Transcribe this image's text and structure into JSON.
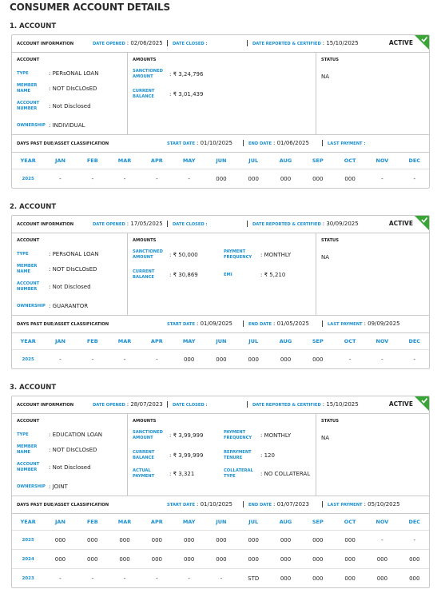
{
  "title": "CONSUMER ACCOUNT DETAILS",
  "accounts": [
    {
      "heading": "1. ACCOUNT",
      "badge": "ACTIVE",
      "info": {
        "title": "ACCOUNT INFORMATION",
        "fields": [
          {
            "label": "DATE OPENED",
            "value": ": 02/06/2025"
          },
          {
            "label": "DATE CLOSED :"
          },
          {
            "label": "DATE REPORTED & CERTIFIED",
            "value": ": 15/10/2025"
          }
        ]
      },
      "account": {
        "header": "ACCOUNT",
        "fields": [
          {
            "label": "TYPE",
            "value": ": PERsONAL LOAN"
          },
          {
            "label": "MEMBER NAME",
            "value": ": NOT DIsCLOsED"
          },
          {
            "label": "ACCOUNT NUMBER",
            "value": ": Not Disclosed"
          },
          {
            "label": "OWNERSHIP",
            "value": ": INDIVIDUAL"
          }
        ]
      },
      "amounts": {
        "header": "AMOUNTS",
        "left": [
          {
            "label": "SANCTIONED AMOUNT",
            "value": ": ₹ 3,24,796"
          },
          {
            "label": "CURRENT BALANCE",
            "value": ": ₹ 3,01,439"
          }
        ]
      },
      "status": {
        "header": "STATUS",
        "value": "NA"
      },
      "dpd": {
        "title": "DAYS PAST DUE/ASSET CLASSIFICATION",
        "fields": [
          {
            "label": "START DATE",
            "value": ": 01/10/2025"
          },
          {
            "label": "END DATE",
            "value": ": 01/06/2025"
          },
          {
            "label": "LAST PAYMENT :"
          }
        ]
      },
      "table": {
        "columns": [
          "YEAR",
          "JAN",
          "FEB",
          "MAR",
          "APR",
          "MAY",
          "JUN",
          "JUL",
          "AUG",
          "SEP",
          "OCT",
          "NOV",
          "DEC"
        ],
        "rows": [
          [
            "2025",
            "-",
            "-",
            "-",
            "-",
            "-",
            "000",
            "000",
            "000",
            "000",
            "000",
            "-",
            "-"
          ]
        ]
      }
    },
    {
      "heading": "2. ACCOUNT",
      "badge": "ACTIVE",
      "info": {
        "title": "ACCOUNT INFORMATION",
        "fields": [
          {
            "label": "DATE OPENED",
            "value": ": 17/05/2025"
          },
          {
            "label": "DATE CLOSED :"
          },
          {
            "label": "DATE REPORTED & CERTIFIED",
            "value": ": 30/09/2025"
          }
        ]
      },
      "account": {
        "header": "ACCOUNT",
        "fields": [
          {
            "label": "TYPE",
            "value": ": PERsONAL LOAN"
          },
          {
            "label": "MEMBER NAME",
            "value": ": NOT DIsCLOsED"
          },
          {
            "label": "ACCOUNT NUMBER",
            "value": ": Not Disclosed"
          },
          {
            "label": "OWNERSHIP",
            "value": ": GUARANTOR"
          }
        ]
      },
      "amounts": {
        "header": "AMOUNTS",
        "left": [
          {
            "label": "SANCTIONED AMOUNT",
            "value": ": ₹ 50,000"
          },
          {
            "label": "CURRENT BALANCE",
            "value": ": ₹ 30,869"
          }
        ],
        "right": [
          {
            "label": "PAYMENT FREQUENCY",
            "value": ": MONTHLY"
          },
          {
            "label": "EMI",
            "value": ": ₹ 5,210"
          }
        ]
      },
      "status": {
        "header": "STATUS",
        "value": "NA"
      },
      "dpd": {
        "title": "DAYS PAST DUE/ASSET CLASSIFICATION",
        "fields": [
          {
            "label": "START DATE",
            "value": ": 01/09/2025"
          },
          {
            "label": "END DATE",
            "value": ": 01/05/2025"
          },
          {
            "label": "LAST PAYMENT",
            "value": ": 09/09/2025"
          }
        ]
      },
      "table": {
        "columns": [
          "YEAR",
          "JAN",
          "FEB",
          "MAR",
          "APR",
          "MAY",
          "JUN",
          "JUL",
          "AUG",
          "SEP",
          "OCT",
          "NOV",
          "DEC"
        ],
        "rows": [
          [
            "2025",
            "-",
            "-",
            "-",
            "-",
            "000",
            "000",
            "000",
            "000",
            "000",
            "-",
            "-",
            "-"
          ]
        ]
      }
    },
    {
      "heading": "3. ACCOUNT",
      "badge": "ACTIVE",
      "info": {
        "title": "ACCOUNT INFORMATION",
        "fields": [
          {
            "label": "DATE OPENED",
            "value": ": 28/07/2023"
          },
          {
            "label": "DATE CLOSED :"
          },
          {
            "label": "DATE REPORTED & CERTIFIED",
            "value": ": 15/10/2025"
          }
        ]
      },
      "account": {
        "header": "ACCOUNT",
        "fields": [
          {
            "label": "TYPE",
            "value": ": EDUCATION LOAN"
          },
          {
            "label": "MEMBER NAME",
            "value": ": NOT DIsCLOsED"
          },
          {
            "label": "ACCOUNT NUMBER",
            "value": ": Not Disclosed"
          },
          {
            "label": "OWNERSHIP",
            "value": ": JOINT"
          }
        ]
      },
      "amounts": {
        "header": "AMOUNTS",
        "left": [
          {
            "label": "SANCTIONED AMOUNT",
            "value": ": ₹ 3,99,999"
          },
          {
            "label": "CURRENT BALANCE",
            "value": ": ₹ 3,99,999"
          },
          {
            "label": "ACTUAL PAYMENT",
            "value": ": ₹ 3,321"
          }
        ],
        "right": [
          {
            "label": "PAYMENT FREQUENCY",
            "value": ": MONTHLY"
          },
          {
            "label": "REPAYMENT TENURE",
            "value": ": 120"
          },
          {
            "label": "COLLATERAL TYPE",
            "value": ": NO COLLATERAL"
          }
        ]
      },
      "status": {
        "header": "STATUS",
        "value": "NA"
      },
      "dpd": {
        "title": "DAYS PAST DUE/ASSET CLASSIFICATION",
        "fields": [
          {
            "label": "START DATE",
            "value": ": 01/10/2025"
          },
          {
            "label": "END DATE",
            "value": ": 01/07/2023"
          },
          {
            "label": "LAST PAYMENT",
            "value": ": 05/10/2025"
          }
        ]
      },
      "table": {
        "columns": [
          "YEAR",
          "JAN",
          "FEB",
          "MAR",
          "APR",
          "MAY",
          "JUN",
          "JUL",
          "AUG",
          "SEP",
          "OCT",
          "NOV",
          "DEC"
        ],
        "rows": [
          [
            "2025",
            "000",
            "000",
            "000",
            "000",
            "000",
            "000",
            "000",
            "000",
            "000",
            "000",
            "-",
            "-"
          ],
          [
            "2024",
            "000",
            "000",
            "000",
            "000",
            "000",
            "000",
            "000",
            "000",
            "000",
            "000",
            "000",
            "000"
          ],
          [
            "2023",
            "-",
            "-",
            "-",
            "-",
            "-",
            "-",
            "STD",
            "000",
            "000",
            "000",
            "000",
            "000"
          ]
        ]
      }
    }
  ]
}
